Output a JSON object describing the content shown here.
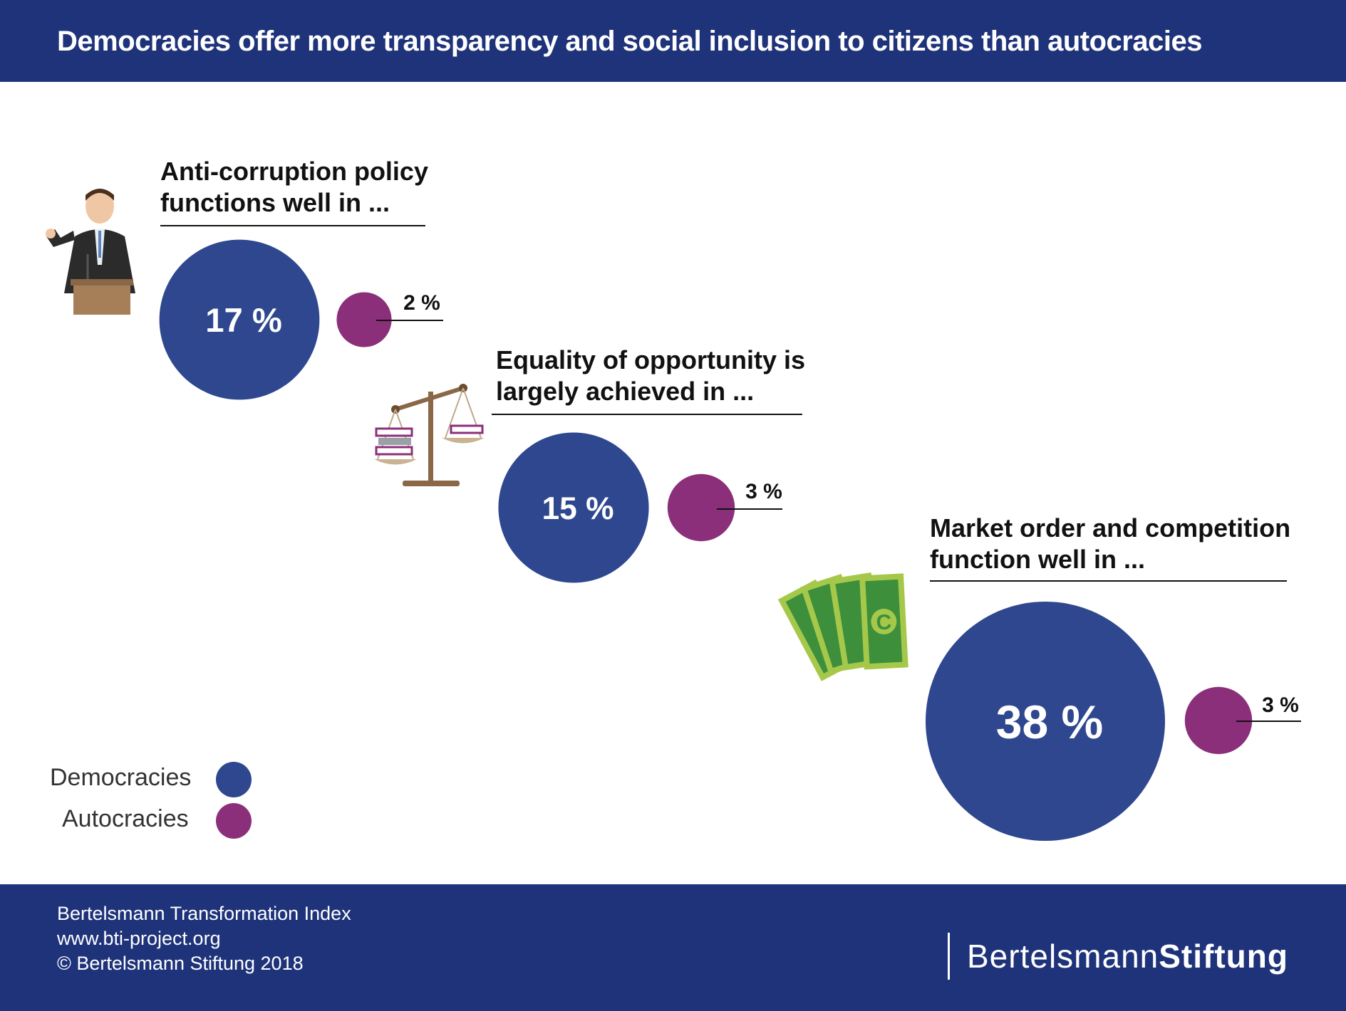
{
  "header": {
    "title": "Democracies offer more transparency and social inclusion to citizens than autocracies"
  },
  "chart_data": {
    "type": "bubble",
    "title": "Democracies offer more transparency and social inclusion to citizens than autocracies",
    "series": [
      {
        "name": "Democracies",
        "color": "#2e478e"
      },
      {
        "name": "Autocracies",
        "color": "#8c2f7a"
      }
    ],
    "categories": [
      {
        "title_lines": [
          "Anti-corruption policy",
          "functions well in ..."
        ],
        "icon": "politician-at-podium-icon",
        "democracies": 17,
        "autocracies": 2,
        "democracies_label": "17 %",
        "autocracies_label": "2 %"
      },
      {
        "title_lines": [
          "Equality of opportunity is",
          "largely achieved in ..."
        ],
        "icon": "balance-scale-icon",
        "democracies": 15,
        "autocracies": 3,
        "democracies_label": "15 %",
        "autocracies_label": "3 %"
      },
      {
        "title_lines": [
          "Market order and competition",
          "function well in ..."
        ],
        "icon": "banknotes-icon",
        "democracies": 38,
        "autocracies": 3,
        "democracies_label": "38 %",
        "autocracies_label": "3 %"
      }
    ]
  },
  "legend": {
    "democracies": "Democracies",
    "autocracies": "Autocracies"
  },
  "footer": {
    "line1": "Bertelsmann Transformation Index",
    "line2": "www.bti-project.org",
    "line3": "© Bertelsmann Stiftung 2018",
    "brand_light": "Bertelsmann",
    "brand_bold": "Stiftung"
  }
}
